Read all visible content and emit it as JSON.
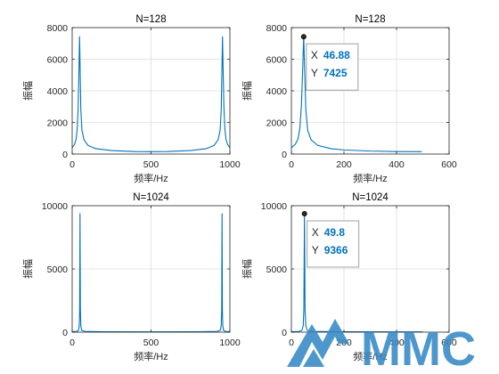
{
  "colors": {
    "line": "#0072BD",
    "grid": "#dcdcdc",
    "axis": "#262626",
    "logo": "#3a8cc8"
  },
  "logo": {
    "text": "MMC"
  },
  "chart_data": [
    {
      "type": "line",
      "title": "N=128",
      "xlabel": "频率/Hz",
      "ylabel": "振幅",
      "xlim": [
        0,
        1000
      ],
      "ylim": [
        0,
        8000
      ],
      "xticks": [
        0,
        500,
        1000
      ],
      "yticks": [
        0,
        2000,
        4000,
        6000,
        8000
      ],
      "grid": true,
      "series": [
        {
          "x": [
            0,
            15,
            25,
            32,
            38,
            43,
            46.88,
            50,
            55,
            62,
            75,
            100,
            150,
            250,
            400,
            500,
            600,
            750,
            850,
            900,
            925,
            938,
            945,
            950,
            953.12,
            957,
            962,
            968,
            975,
            985,
            1000
          ],
          "y": [
            400,
            620,
            950,
            1600,
            3000,
            5400,
            7425,
            5600,
            2800,
            1500,
            900,
            550,
            340,
            220,
            160,
            150,
            160,
            220,
            340,
            550,
            900,
            1500,
            2800,
            5600,
            7425,
            5400,
            3000,
            1600,
            950,
            620,
            400
          ]
        }
      ]
    },
    {
      "type": "line",
      "title": "N=128",
      "xlabel": "频率/Hz",
      "ylabel": "振幅",
      "xlim": [
        0,
        600
      ],
      "ylim": [
        0,
        8000
      ],
      "xticks": [
        0,
        200,
        400,
        600
      ],
      "yticks": [
        0,
        2000,
        4000,
        6000,
        8000
      ],
      "grid": true,
      "datatip": {
        "x_label": "X",
        "x": "46.88",
        "y_label": "Y",
        "y": "7425"
      },
      "series": [
        {
          "x": [
            0,
            15,
            25,
            32,
            38,
            43,
            46.88,
            50,
            55,
            62,
            75,
            100,
            150,
            200,
            300,
            400,
            496
          ],
          "y": [
            400,
            620,
            950,
            1600,
            3000,
            5400,
            7425,
            5600,
            2800,
            1500,
            900,
            550,
            340,
            260,
            190,
            160,
            150
          ]
        }
      ]
    },
    {
      "type": "line",
      "title": "N=1024",
      "xlabel": "频率/Hz",
      "ylabel": "振幅",
      "xlim": [
        0,
        1000
      ],
      "ylim": [
        0,
        10000
      ],
      "xticks": [
        0,
        500,
        1000
      ],
      "yticks": [
        0,
        5000,
        10000
      ],
      "grid": true,
      "series": [
        {
          "x": [
            0,
            30,
            40,
            45,
            47.5,
            49.8,
            52,
            55,
            60,
            80,
            200,
            500,
            800,
            920,
            940,
            945,
            948,
            950.2,
            952.5,
            955,
            960,
            970,
            1000
          ],
          "y": [
            30,
            60,
            150,
            500,
            1800,
            9366,
            1800,
            500,
            150,
            60,
            30,
            20,
            30,
            60,
            150,
            500,
            1800,
            9366,
            1800,
            500,
            150,
            60,
            30
          ]
        }
      ]
    },
    {
      "type": "line",
      "title": "N=1024",
      "xlabel": "频率/Hz",
      "ylabel": "振幅",
      "xlim": [
        0,
        600
      ],
      "ylim": [
        0,
        10000
      ],
      "xticks": [
        0,
        200,
        400,
        600
      ],
      "yticks": [
        0,
        5000,
        10000
      ],
      "grid": true,
      "datatip": {
        "x_label": "X",
        "x": "49.8",
        "y_label": "Y",
        "y": "9366"
      },
      "series": [
        {
          "x": [
            0,
            30,
            40,
            45,
            47.5,
            49.8,
            52,
            55,
            60,
            80,
            200,
            400,
            499
          ],
          "y": [
            30,
            60,
            150,
            500,
            1800,
            9366,
            1800,
            500,
            150,
            60,
            30,
            25,
            20
          ]
        }
      ]
    }
  ]
}
